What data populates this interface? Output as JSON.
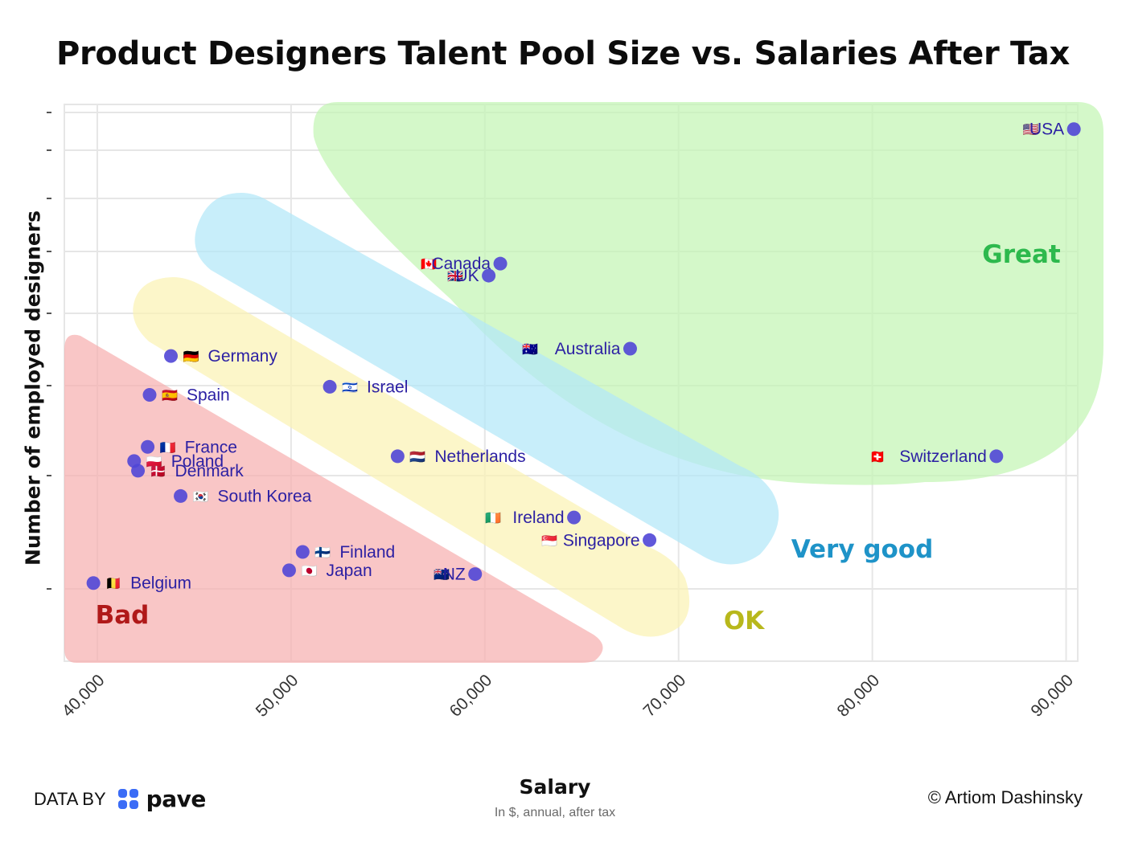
{
  "page": {
    "title": "Product Designers Talent Pool Size vs. Salaries After Tax",
    "footer": {
      "data_by_label": "DATA BY",
      "brand_name": "pave",
      "copyright": "© Artiom Dashinsky"
    }
  },
  "chart_data": {
    "type": "scatter",
    "title": "Product Designers Talent Pool Size vs. Salaries After Tax",
    "xlabel": "Salary",
    "xlabel_sub": "In $, annual, after tax",
    "ylabel": "Number of employed designers",
    "xlim": [
      38300,
      90600
    ],
    "x_ticks": [
      40000,
      50000,
      60000,
      70000,
      80000,
      90000
    ],
    "x_tick_labels": [
      "40,000",
      "50,000",
      "60,000",
      "70,000",
      "80,000",
      "90,000"
    ],
    "y_scale": "log",
    "y_ticks_labeled": false,
    "y_tick_count": 11,
    "grid": true,
    "point_color": "#5046d6",
    "label_color": "#2b1fa3",
    "points": [
      {
        "name": "USA",
        "flag": "🇺🇸",
        "x": 90400,
        "y": 96,
        "label_side": "left"
      },
      {
        "name": "Canada",
        "flag": "🇨🇦",
        "x": 60800,
        "y": 69,
        "label_side": "left"
      },
      {
        "name": "UK",
        "flag": "🇬🇧",
        "x": 60200,
        "y": 67,
        "label_side": "left"
      },
      {
        "name": "Australia",
        "flag": "🇦🇺",
        "x": 67500,
        "y": 56,
        "label_side": "left"
      },
      {
        "name": "Switzerland",
        "flag": "🇨🇭",
        "x": 86400,
        "y": 43,
        "label_side": "left"
      },
      {
        "name": "Netherlands",
        "flag": "🇳🇱",
        "x": 55500,
        "y": 43,
        "label_side": "right"
      },
      {
        "name": "Israel",
        "flag": "🇮🇱",
        "x": 52000,
        "y": 51,
        "label_side": "right"
      },
      {
        "name": "Germany",
        "flag": "🇩🇪",
        "x": 43800,
        "y": 55,
        "label_side": "right"
      },
      {
        "name": "Spain",
        "flag": "🇪🇸",
        "x": 42700,
        "y": 50,
        "label_side": "right"
      },
      {
        "name": "France",
        "flag": "🇫🇷",
        "x": 42600,
        "y": 44,
        "label_side": "right"
      },
      {
        "name": "Poland",
        "flag": "🇵🇱",
        "x": 41900,
        "y": 42.5,
        "label_side": "right"
      },
      {
        "name": "Denmark",
        "flag": "🇩🇰",
        "x": 42100,
        "y": 41.5,
        "label_side": "right"
      },
      {
        "name": "South Korea",
        "flag": "🇰🇷",
        "x": 44300,
        "y": 39,
        "label_side": "right"
      },
      {
        "name": "Ireland",
        "flag": "🇮🇪",
        "x": 64600,
        "y": 37,
        "label_side": "left"
      },
      {
        "name": "Singapore",
        "flag": "🇸🇬",
        "x": 68500,
        "y": 35,
        "label_side": "left"
      },
      {
        "name": "Finland",
        "flag": "🇫🇮",
        "x": 50600,
        "y": 34,
        "label_side": "right"
      },
      {
        "name": "Japan",
        "flag": "🇯🇵",
        "x": 49900,
        "y": 32.5,
        "label_side": "right"
      },
      {
        "name": "NZ",
        "flag": "🇳🇿",
        "x": 59500,
        "y": 32.2,
        "label_side": "left"
      },
      {
        "name": "Belgium",
        "flag": "🇧🇪",
        "x": 39800,
        "y": 31.5,
        "label_side": "right"
      }
    ],
    "zones": [
      {
        "name": "Great",
        "color": "#c4f5b4",
        "label_color": "#2db94d"
      },
      {
        "name": "Very good",
        "color": "#b3e8f8",
        "label_color": "#1e93c8"
      },
      {
        "name": "OK",
        "color": "#fbf2b4",
        "label_color": "#b8b81c"
      },
      {
        "name": "Bad",
        "color": "#f6b0b0",
        "label_color": "#b01919"
      }
    ]
  }
}
